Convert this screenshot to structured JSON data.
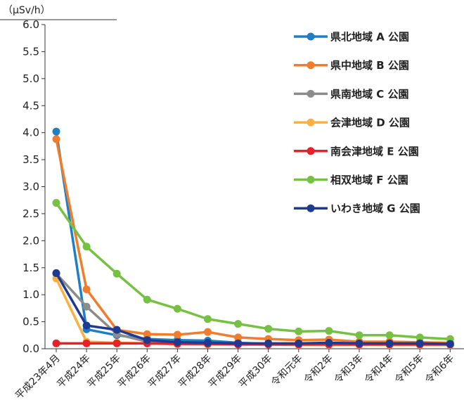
{
  "chart_data": {
    "type": "line",
    "ylabel": "（μSv/h）",
    "ylim": [
      0,
      6.0
    ],
    "yticks": [
      "0.0",
      "0.5",
      "1.0",
      "1.5",
      "2.0",
      "2.5",
      "3.0",
      "3.5",
      "4.0",
      "4.5",
      "5.0",
      "5.5",
      "6.0"
    ],
    "categories": [
      "平成23年4月",
      "平成24年",
      "平成25年",
      "平成26年",
      "平成27年",
      "平成28年",
      "平成29年",
      "平成30年",
      "令和元年",
      "令和2年",
      "令和3年",
      "令和4年",
      "令和5年",
      "令和6年"
    ],
    "legend_position": "top-right",
    "series": [
      {
        "name": "県北地域 A 公園",
        "color": "#1f7fc4",
        "values": [
          4.02,
          0.36,
          0.25,
          0.18,
          0.16,
          0.15,
          0.11,
          0.09,
          0.09,
          0.09,
          0.08,
          0.08,
          0.08,
          0.08
        ]
      },
      {
        "name": "県中地域 B 公園",
        "color": "#ef7d2d",
        "values": [
          3.88,
          1.1,
          0.35,
          0.27,
          0.26,
          0.31,
          0.21,
          0.18,
          0.16,
          0.17,
          0.13,
          0.13,
          0.12,
          0.11
        ]
      },
      {
        "name": "県南地域 C 公園",
        "color": "#8c8c8c",
        "values": [
          1.39,
          0.78,
          0.27,
          0.13,
          0.11,
          0.1,
          0.09,
          0.08,
          0.08,
          0.08,
          0.08,
          0.07,
          0.07,
          0.07
        ]
      },
      {
        "name": "会津地域 D 公園",
        "color": "#fbb040",
        "values": [
          1.3,
          0.13,
          0.11,
          0.1,
          0.09,
          0.08,
          0.08,
          0.08,
          0.07,
          0.07,
          0.07,
          0.07,
          0.07,
          0.07
        ]
      },
      {
        "name": "南会津地域 E 公園",
        "color": "#e8202a",
        "values": [
          0.1,
          0.1,
          0.1,
          0.1,
          0.09,
          0.09,
          0.08,
          0.08,
          0.08,
          0.08,
          0.08,
          0.08,
          0.08,
          0.08
        ]
      },
      {
        "name": "相双地域 F 公園",
        "color": "#76c043",
        "values": [
          2.7,
          1.89,
          1.39,
          0.91,
          0.74,
          0.55,
          0.46,
          0.37,
          0.32,
          0.33,
          0.25,
          0.25,
          0.21,
          0.18
        ]
      },
      {
        "name": "いわき地域 G 公園",
        "color": "#1f3a93",
        "values": [
          1.4,
          0.43,
          0.35,
          0.16,
          0.12,
          0.11,
          0.1,
          0.1,
          0.1,
          0.11,
          0.1,
          0.1,
          0.1,
          0.09
        ]
      }
    ]
  }
}
